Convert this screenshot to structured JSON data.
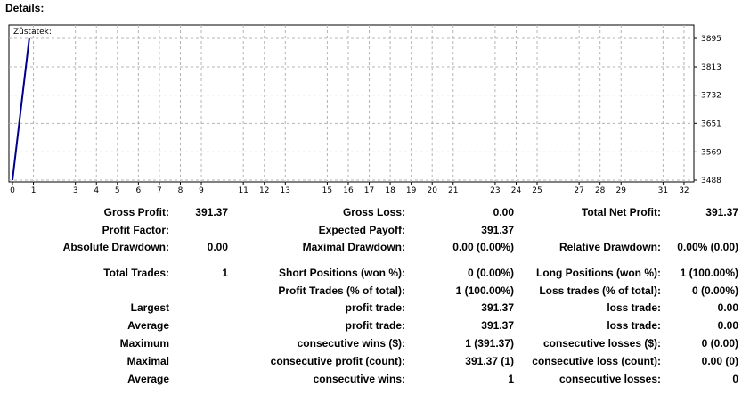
{
  "header": {
    "title": "Details:"
  },
  "chart_data": {
    "type": "line",
    "legend": "Zůstatek:",
    "x": [
      0,
      0.8
    ],
    "y": [
      3488,
      3895
    ],
    "x_ticks": [
      "0",
      "1",
      "3",
      "4",
      "5",
      "6",
      "7",
      "8",
      "9",
      "11",
      "12",
      "13",
      "15",
      "16",
      "17",
      "18",
      "19",
      "20",
      "21",
      "23",
      "24",
      "25",
      "27",
      "28",
      "29",
      "31",
      "32"
    ],
    "y_ticks": [
      3895,
      3813,
      3732,
      3651,
      3569,
      3488
    ],
    "ylim": [
      3488,
      3895
    ],
    "grid": true,
    "line_color": "#00008b"
  },
  "stats": {
    "rows": [
      [
        {
          "label": "Gross Profit:",
          "value": "391.37"
        },
        {
          "label": "Gross Loss:",
          "value": "0.00"
        },
        {
          "label": "Total Net Profit:",
          "value": "391.37"
        }
      ],
      [
        {
          "label": "Profit Factor:",
          "value": ""
        },
        {
          "label": "Expected Payoff:",
          "value": "391.37"
        },
        {
          "label": "",
          "value": ""
        }
      ],
      [
        {
          "label": "Absolute Drawdown:",
          "value": "0.00"
        },
        {
          "label": "Maximal Drawdown:",
          "value": "0.00 (0.00%)"
        },
        {
          "label": "Relative Drawdown:",
          "value": "0.00% (0.00)"
        }
      ],
      [
        {
          "label": "Total Trades:",
          "value": "1"
        },
        {
          "label": "Short Positions (won %):",
          "value": "0 (0.00%)"
        },
        {
          "label": "Long Positions (won %):",
          "value": "1 (100.00%)"
        }
      ],
      [
        {
          "label": "",
          "value": ""
        },
        {
          "label": "Profit Trades (% of total):",
          "value": "1 (100.00%)"
        },
        {
          "label": "Loss trades (% of total):",
          "value": "0 (0.00%)"
        }
      ],
      [
        {
          "label": "Largest",
          "value": ""
        },
        {
          "label": "profit trade:",
          "value": "391.37"
        },
        {
          "label": "loss trade:",
          "value": "0.00"
        }
      ],
      [
        {
          "label": "Average",
          "value": ""
        },
        {
          "label": "profit trade:",
          "value": "391.37"
        },
        {
          "label": "loss trade:",
          "value": "0.00"
        }
      ],
      [
        {
          "label": "Maximum",
          "value": ""
        },
        {
          "label": "consecutive wins ($):",
          "value": "1 (391.37)"
        },
        {
          "label": "consecutive losses ($):",
          "value": "0 (0.00)"
        }
      ],
      [
        {
          "label": "Maximal",
          "value": ""
        },
        {
          "label": "consecutive profit (count):",
          "value": "391.37 (1)"
        },
        {
          "label": "consecutive loss (count):",
          "value": "0.00 (0)"
        }
      ],
      [
        {
          "label": "Average",
          "value": ""
        },
        {
          "label": "consecutive wins:",
          "value": "1"
        },
        {
          "label": "consecutive losses:",
          "value": "0"
        }
      ]
    ]
  }
}
